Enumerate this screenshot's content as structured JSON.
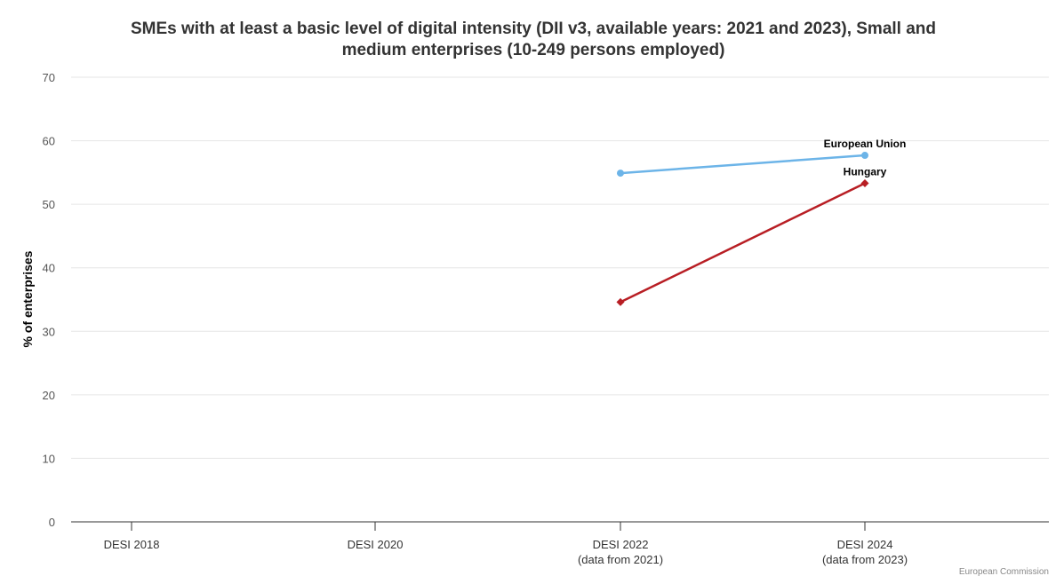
{
  "chart_data": {
    "type": "line",
    "title": "SMEs with at least a basic level of digital intensity (DII v3, available years: 2021 and 2023), Small and medium enterprises (10-249 persons employed)",
    "title_lines": [
      "SMEs with at least a basic level of digital intensity (DII v3, available years: 2021 and 2023), Small and",
      "medium enterprises (10-249 persons employed)"
    ],
    "xlabel": "",
    "ylabel": "% of enterprises",
    "ylim": [
      0,
      70
    ],
    "yticks": [
      0,
      10,
      20,
      30,
      40,
      50,
      60,
      70
    ],
    "grid": true,
    "categories": [
      {
        "label": "DESI 2018",
        "sublabel": ""
      },
      {
        "label": "DESI 2020",
        "sublabel": ""
      },
      {
        "label": "DESI 2022",
        "sublabel": "(data from 2021)"
      },
      {
        "label": "DESI 2024",
        "sublabel": "(data from 2023)"
      }
    ],
    "series": [
      {
        "name": "European Union",
        "color": "#6cb4e8",
        "marker": "circle",
        "values": [
          null,
          null,
          54.9,
          57.7
        ]
      },
      {
        "name": "Hungary",
        "color": "#b81e24",
        "marker": "diamond",
        "values": [
          null,
          null,
          34.6,
          53.3
        ]
      }
    ],
    "credit": "European Commission"
  }
}
